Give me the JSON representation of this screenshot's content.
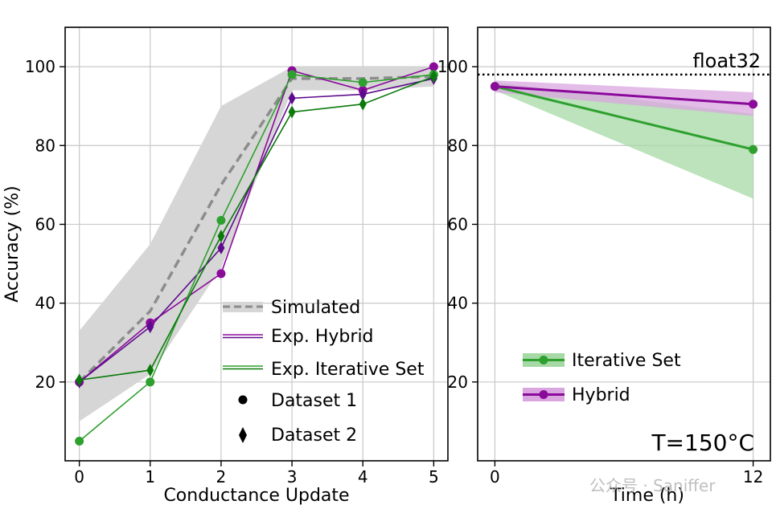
{
  "chart_data": [
    {
      "type": "line",
      "xlabel": "Conductance Update",
      "ylabel": "Accuracy (%)",
      "xlim": [
        -0.2,
        5.2
      ],
      "ylim": [
        0,
        110
      ],
      "xticks": [
        0,
        1,
        2,
        3,
        4,
        5
      ],
      "yticks": [
        20,
        40,
        60,
        80,
        100
      ],
      "grid": true,
      "legend_position": "bottom-right",
      "legend": [
        "Simulated",
        "Exp. Hybrid",
        "Exp. Iterative Set",
        "Dataset 1",
        "Dataset 2"
      ],
      "simulated": {
        "name": "Simulated",
        "color": "#8c8c8c",
        "x": [
          0,
          1,
          2,
          3,
          4,
          5
        ],
        "mean": [
          20,
          38,
          70,
          97,
          97,
          97.5
        ],
        "lower": [
          10,
          22,
          49,
          94,
          94,
          95
        ],
        "upper": [
          33,
          55,
          90,
          100,
          100,
          100
        ]
      },
      "series": [
        {
          "name": "Exp. Hybrid",
          "marker": "circle",
          "color": "#8a0a9a",
          "x": [
            0,
            1,
            2,
            3,
            4,
            5
          ],
          "values": [
            20,
            35,
            47.5,
            99,
            94,
            100
          ]
        },
        {
          "name": "Exp. Hybrid",
          "marker": "diamond",
          "color": "#5e0a8c",
          "x": [
            0,
            1,
            2,
            3,
            4,
            5
          ],
          "values": [
            20,
            34,
            54,
            92,
            93,
            97
          ]
        },
        {
          "name": "Exp. Iterative Set",
          "marker": "circle",
          "color": "#2ea02e",
          "x": [
            0,
            1,
            2,
            3,
            4,
            5
          ],
          "values": [
            5,
            20,
            61,
            98,
            96,
            98
          ]
        },
        {
          "name": "Exp. Iterative Set",
          "marker": "diamond",
          "color": "#0a7a0a",
          "x": [
            0,
            1,
            2,
            3,
            4,
            5
          ],
          "values": [
            20.5,
            23,
            57,
            88.5,
            90.5,
            97.5
          ]
        }
      ]
    },
    {
      "type": "line",
      "xlabel": "Time (h)",
      "ylabel": "",
      "xlim": [
        -0.8,
        12.8
      ],
      "ylim": [
        0,
        110
      ],
      "xticks": [
        0,
        12
      ],
      "yticks": [
        20,
        40,
        60,
        80,
        100
      ],
      "grid": true,
      "legend_position": "bottom-left",
      "reference_line": {
        "label": "float32",
        "value": 98
      },
      "annotation": "T=150°C",
      "series": [
        {
          "name": "Iterative Set",
          "color": "#2ea02e",
          "x": [
            0,
            12
          ],
          "values": [
            95,
            79
          ],
          "lower": [
            94,
            66.5
          ],
          "upper": [
            96,
            88
          ]
        },
        {
          "name": "Hybrid",
          "color": "#8a0a9a",
          "x": [
            0,
            12
          ],
          "values": [
            95,
            90.5
          ],
          "lower": [
            93.5,
            87.5
          ],
          "upper": [
            96.5,
            93.5
          ]
        }
      ]
    }
  ],
  "watermark": "公众号 · Saniffer"
}
